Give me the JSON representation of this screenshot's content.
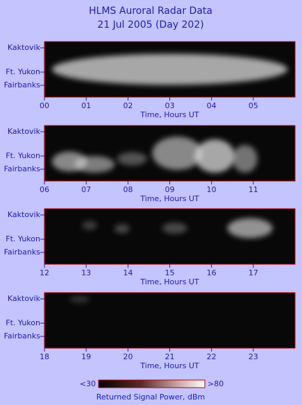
{
  "title": [
    "HLMS Auroral Radar Data",
    "21 Jul 2005 (Day 202)"
  ],
  "chart_data": [
    {
      "type": "heatmap",
      "xlabel": "Time, Hours UT",
      "xlim": [
        0,
        6
      ],
      "y_categories": [
        "Kaktovik",
        "Ft. Yukon",
        "Fairbanks"
      ],
      "xticks": [
        {
          "value": 0,
          "label": "00"
        },
        {
          "value": 1,
          "label": "01"
        },
        {
          "value": 2,
          "label": "02"
        },
        {
          "value": 3,
          "label": "03"
        },
        {
          "value": 4,
          "label": "04"
        },
        {
          "value": 5,
          "label": "05"
        }
      ]
    },
    {
      "type": "heatmap",
      "xlabel": "Time, Hours UT",
      "xlim": [
        6,
        12
      ],
      "y_categories": [
        "Kaktovik",
        "Ft. Yukon",
        "Fairbanks"
      ],
      "xticks": [
        {
          "value": 6,
          "label": "06"
        },
        {
          "value": 7,
          "label": "07"
        },
        {
          "value": 8,
          "label": "08"
        },
        {
          "value": 9,
          "label": "09"
        },
        10,
        11
      ]
    },
    {
      "type": "heatmap",
      "xlabel": "Time, Hours UT",
      "xlim": [
        12,
        18
      ],
      "y_categories": [
        "Kaktovik",
        "Ft. Yukon",
        "Fairbanks"
      ],
      "xticks": [
        12,
        13,
        14,
        15,
        16,
        17
      ]
    },
    {
      "type": "heatmap",
      "xlabel": "Time, Hours UT",
      "xlim": [
        18,
        24
      ],
      "y_categories": [
        "Kaktovik",
        "Ft. Yukon",
        "Fairbanks"
      ],
      "xticks": [
        18,
        19,
        20,
        21,
        22,
        23
      ]
    }
  ],
  "colorbar": {
    "label": "Returned Signal Power, dBm",
    "clim": [
      30,
      80
    ],
    "cticks": [
      {
        "value": 30,
        "label": "<30"
      },
      {
        "value": 80,
        "label": ">80"
      }
    ]
  }
}
